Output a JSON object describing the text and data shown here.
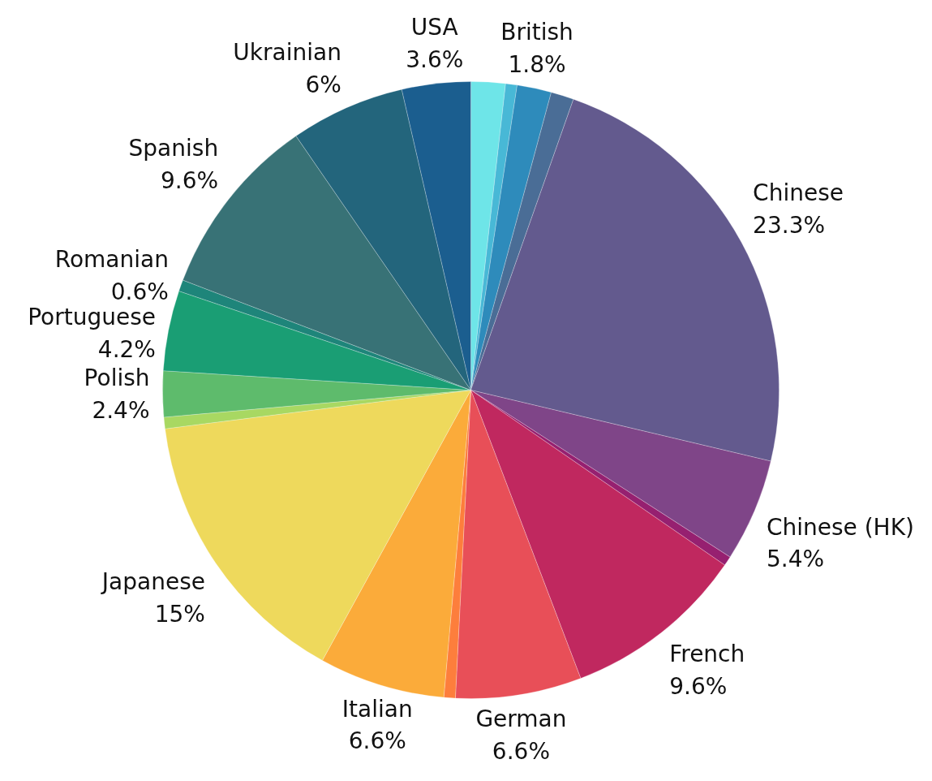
{
  "chart_data": {
    "type": "pie",
    "categories": [
      null,
      null,
      "British",
      null,
      "Chinese",
      "Chinese (HK)",
      null,
      "French",
      "German",
      null,
      "Italian",
      "Japanese",
      null,
      "Polish",
      "Portuguese",
      "Romanian",
      "Spanish",
      "Ukrainian",
      "USA"
    ],
    "values": [
      1.8,
      0.6,
      1.8,
      1.2,
      23.3,
      5.4,
      0.5,
      9.6,
      6.6,
      0.6,
      6.6,
      15,
      0.6,
      2.4,
      4.2,
      0.6,
      9.6,
      6,
      3.6
    ],
    "value_labels": [
      null,
      null,
      "1.8%",
      null,
      "23.3%",
      "5.4%",
      null,
      "9.6%",
      "6.6%",
      null,
      "6.6%",
      "15%",
      null,
      "2.4%",
      "4.2%",
      "0.6%",
      "9.6%",
      "6%",
      "3.6%"
    ],
    "colors": [
      "#6ee5e8",
      "#48b8d6",
      "#2e8bbb",
      "#4a6d96",
      "#635a8e",
      "#7f4588",
      "#962070",
      "#c0285f",
      "#e84f58",
      "#fd7e3c",
      "#fbab3a",
      "#eed95c",
      "#a8d862",
      "#5ebb6c",
      "#1a9e74",
      "#1e857a",
      "#387276",
      "#23657c",
      "#1b5e8f"
    ]
  }
}
